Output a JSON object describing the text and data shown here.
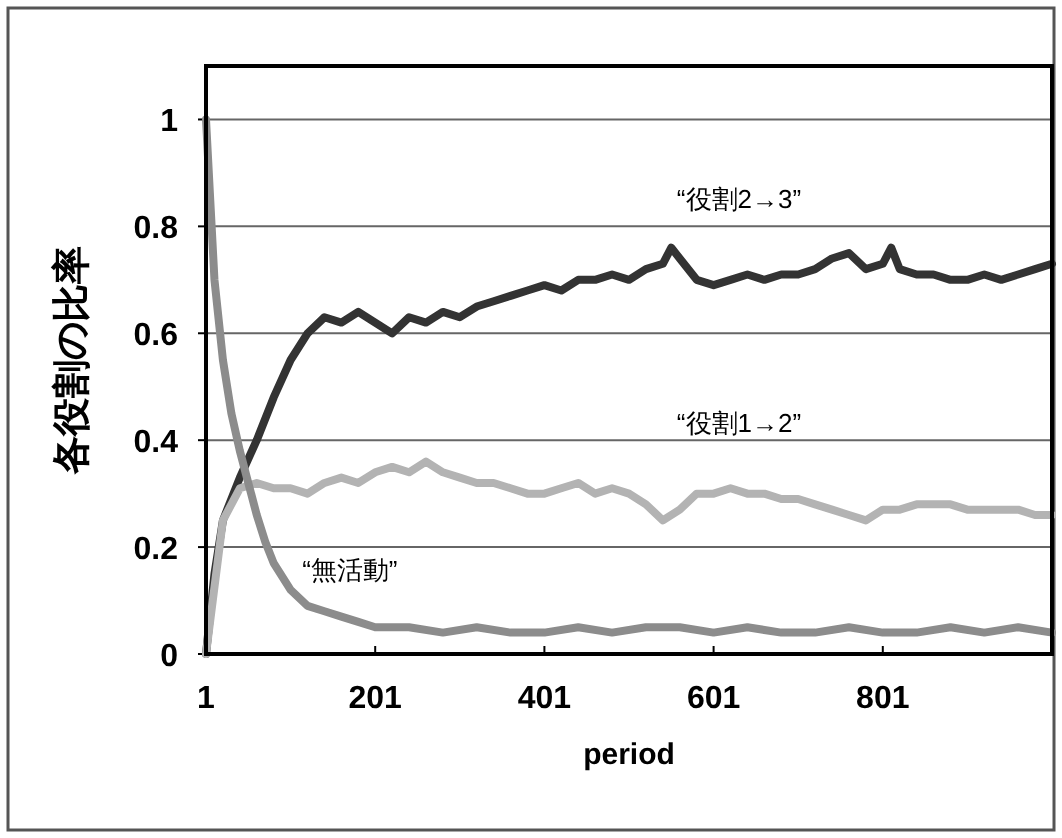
{
  "chart_data": {
    "type": "line",
    "xlabel": "period",
    "ylabel": "各役割の比率",
    "xlim": [
      1,
      1001
    ],
    "xticks": [
      1,
      201,
      401,
      601,
      801
    ],
    "ylim": [
      0,
      1.1
    ],
    "yticks": [
      0,
      0.2,
      0.4,
      0.6,
      0.8,
      1
    ],
    "grid": "y",
    "series": [
      {
        "name": "“役割2→3”",
        "color": "#333333",
        "x": [
          1,
          11,
          21,
          41,
          61,
          81,
          101,
          121,
          141,
          161,
          181,
          201,
          221,
          241,
          261,
          281,
          301,
          321,
          341,
          361,
          381,
          401,
          421,
          441,
          461,
          481,
          501,
          521,
          541,
          551,
          561,
          581,
          601,
          621,
          641,
          661,
          681,
          701,
          721,
          741,
          761,
          781,
          801,
          811,
          821,
          841,
          861,
          881,
          901,
          921,
          941,
          961,
          981,
          1001
        ],
        "values": [
          0,
          0.15,
          0.25,
          0.33,
          0.4,
          0.48,
          0.55,
          0.6,
          0.63,
          0.62,
          0.64,
          0.62,
          0.6,
          0.63,
          0.62,
          0.64,
          0.63,
          0.65,
          0.66,
          0.67,
          0.68,
          0.69,
          0.68,
          0.7,
          0.7,
          0.71,
          0.7,
          0.72,
          0.73,
          0.76,
          0.74,
          0.7,
          0.69,
          0.7,
          0.71,
          0.7,
          0.71,
          0.71,
          0.72,
          0.74,
          0.75,
          0.72,
          0.73,
          0.76,
          0.72,
          0.71,
          0.71,
          0.7,
          0.7,
          0.71,
          0.7,
          0.71,
          0.72,
          0.73
        ]
      },
      {
        "name": "“役割1→2”",
        "color": "#b3b3b3",
        "x": [
          1,
          21,
          41,
          61,
          81,
          101,
          121,
          141,
          161,
          181,
          201,
          221,
          241,
          261,
          281,
          301,
          321,
          341,
          361,
          381,
          401,
          421,
          441,
          461,
          481,
          501,
          521,
          541,
          561,
          581,
          601,
          621,
          641,
          661,
          681,
          701,
          721,
          741,
          761,
          781,
          801,
          821,
          841,
          861,
          881,
          901,
          921,
          941,
          961,
          981,
          1001
        ],
        "values": [
          0,
          0.25,
          0.31,
          0.32,
          0.31,
          0.31,
          0.3,
          0.32,
          0.33,
          0.32,
          0.34,
          0.35,
          0.34,
          0.36,
          0.34,
          0.33,
          0.32,
          0.32,
          0.31,
          0.3,
          0.3,
          0.31,
          0.32,
          0.3,
          0.31,
          0.3,
          0.28,
          0.25,
          0.27,
          0.3,
          0.3,
          0.31,
          0.3,
          0.3,
          0.29,
          0.29,
          0.28,
          0.27,
          0.26,
          0.25,
          0.27,
          0.27,
          0.28,
          0.28,
          0.28,
          0.27,
          0.27,
          0.27,
          0.27,
          0.26,
          0.26
        ]
      },
      {
        "name": "“無活動”",
        "color": "#8c8c8c",
        "x": [
          1,
          6,
          11,
          21,
          31,
          41,
          51,
          61,
          71,
          81,
          101,
          121,
          141,
          161,
          181,
          201,
          241,
          281,
          321,
          361,
          401,
          441,
          481,
          521,
          561,
          601,
          641,
          681,
          721,
          761,
          801,
          841,
          881,
          921,
          961,
          1001
        ],
        "values": [
          1,
          0.85,
          0.7,
          0.55,
          0.45,
          0.38,
          0.32,
          0.26,
          0.21,
          0.17,
          0.12,
          0.09,
          0.08,
          0.07,
          0.06,
          0.05,
          0.05,
          0.04,
          0.05,
          0.04,
          0.04,
          0.05,
          0.04,
          0.05,
          0.05,
          0.04,
          0.05,
          0.04,
          0.04,
          0.05,
          0.04,
          0.04,
          0.05,
          0.04,
          0.05,
          0.04
        ]
      }
    ]
  }
}
